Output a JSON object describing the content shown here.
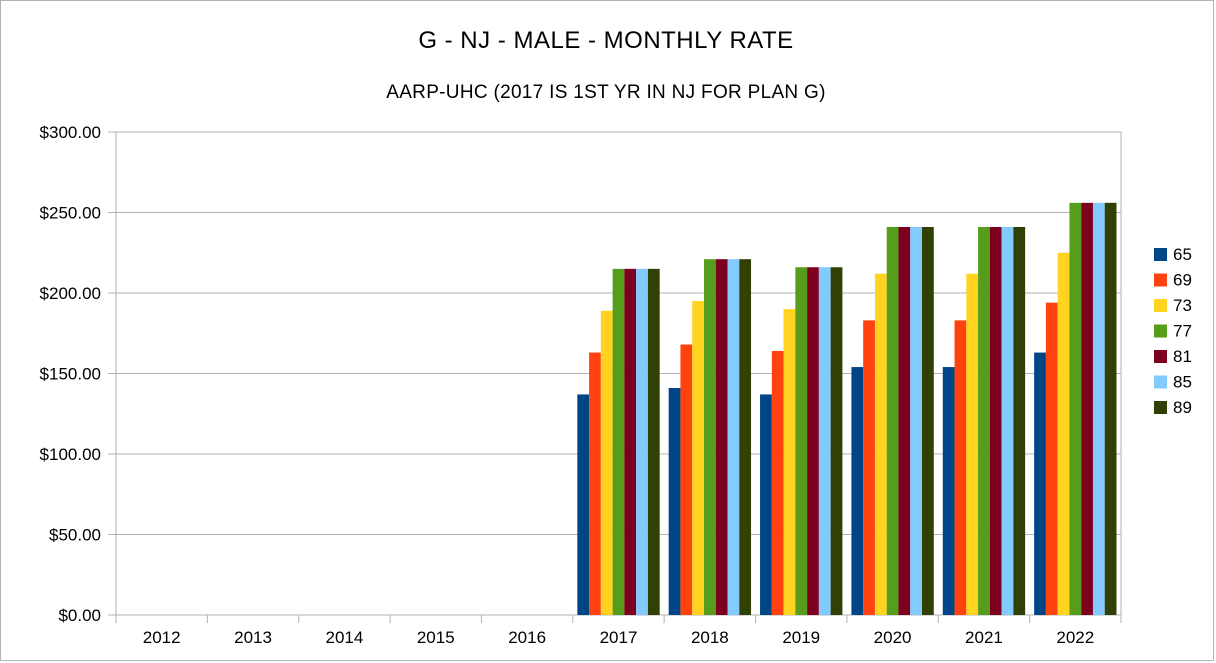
{
  "chart_data": {
    "type": "bar",
    "title": "G - NJ - MALE - MONTHLY RATE",
    "subtitle": "AARP-UHC (2017 IS 1ST YR IN NJ FOR PLAN G)",
    "xlabel": "",
    "ylabel": "",
    "categories": [
      "2012",
      "2013",
      "2014",
      "2015",
      "2016",
      "2017",
      "2018",
      "2019",
      "2020",
      "2021",
      "2022"
    ],
    "ylim": [
      0,
      300
    ],
    "yticks": [
      0,
      50,
      100,
      150,
      200,
      250,
      300
    ],
    "ytick_labels": [
      "$0.00",
      "$50.00",
      "$100.00",
      "$150.00",
      "$200.00",
      "$250.00",
      "$300.00"
    ],
    "grid": true,
    "legend_position": "right",
    "series": [
      {
        "name": "65",
        "color": "#004586",
        "values": [
          null,
          null,
          null,
          null,
          null,
          137,
          141,
          137,
          154,
          154,
          163
        ]
      },
      {
        "name": "69",
        "color": "#ff420e",
        "values": [
          null,
          null,
          null,
          null,
          null,
          163,
          168,
          164,
          183,
          183,
          194
        ]
      },
      {
        "name": "73",
        "color": "#ffd320",
        "values": [
          null,
          null,
          null,
          null,
          null,
          189,
          195,
          190,
          212,
          212,
          225
        ]
      },
      {
        "name": "77",
        "color": "#579d1c",
        "values": [
          null,
          null,
          null,
          null,
          null,
          215,
          221,
          216,
          241,
          241,
          256
        ]
      },
      {
        "name": "81",
        "color": "#7e0021",
        "values": [
          null,
          null,
          null,
          null,
          null,
          215,
          221,
          216,
          241,
          241,
          256
        ]
      },
      {
        "name": "85",
        "color": "#83caff",
        "values": [
          null,
          null,
          null,
          null,
          null,
          215,
          221,
          216,
          241,
          241,
          256
        ]
      },
      {
        "name": "89",
        "color": "#314004",
        "values": [
          null,
          null,
          null,
          null,
          null,
          215,
          221,
          216,
          241,
          241,
          256
        ]
      }
    ]
  }
}
